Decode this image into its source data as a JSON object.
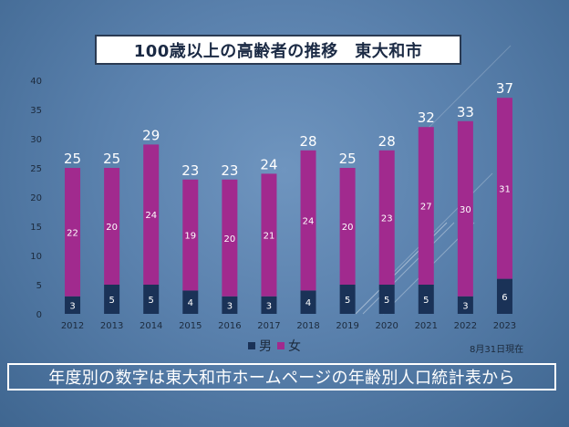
{
  "title": "100歳以上の高齢者の推移　東大和市",
  "as_of": "8月31日現在",
  "caption": "年度別の数字は東大和市ホームページの年齢別人口統計表から",
  "legend": {
    "male": "男",
    "female": "女"
  },
  "colors": {
    "male": "#1a3257",
    "female": "#a12a8e",
    "axis_text": "#1c2a3c",
    "total_label": "#ffffff",
    "bar_label": "#ffffff"
  },
  "chart_data": {
    "type": "bar",
    "stacked": true,
    "title": "100歳以上の高齢者の推移　東大和市",
    "categories": [
      "2012",
      "2013",
      "2014",
      "2015",
      "2016",
      "2017",
      "2018",
      "2019",
      "2020",
      "2021",
      "2022",
      "2023"
    ],
    "series": [
      {
        "name": "男",
        "values": [
          3,
          5,
          5,
          4,
          3,
          3,
          4,
          5,
          5,
          5,
          3,
          6
        ]
      },
      {
        "name": "女",
        "values": [
          22,
          20,
          24,
          19,
          20,
          21,
          24,
          20,
          23,
          27,
          30,
          31
        ]
      }
    ],
    "totals": [
      25,
      25,
      29,
      23,
      23,
      24,
      28,
      25,
      28,
      32,
      33,
      37
    ],
    "ylim": [
      0,
      40
    ],
    "yticks": [
      0,
      5,
      10,
      15,
      20,
      25,
      30,
      35,
      40
    ],
    "xlabel": "",
    "ylabel": "",
    "grid": false,
    "legend_position": "bottom"
  }
}
